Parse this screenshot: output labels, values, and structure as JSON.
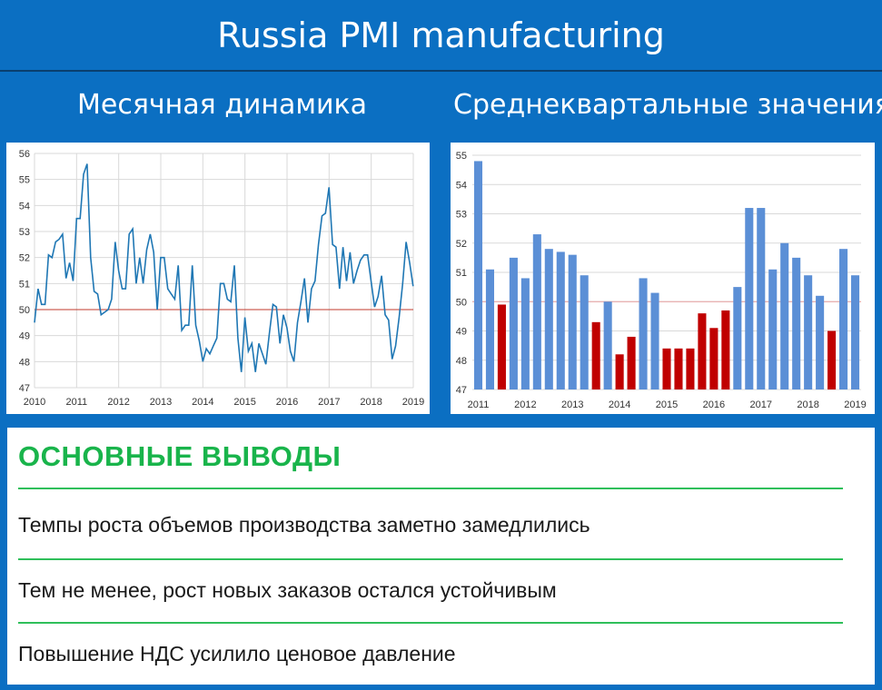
{
  "header": {
    "title": "Russia PMI manufacturing"
  },
  "left_chart_title": "Месячная динамика",
  "right_chart_title": "Среднеквартальные значения",
  "chart_data": [
    {
      "type": "line",
      "x_ticks": [
        "2010",
        "2011",
        "2012",
        "2013",
        "2014",
        "2015",
        "2016",
        "2017",
        "2018",
        "2019"
      ],
      "y_ticks": [
        47,
        48,
        49,
        50,
        51,
        52,
        53,
        54,
        55,
        56
      ],
      "ylim": [
        47,
        56
      ],
      "xlim": [
        2010.0,
        2019.0
      ],
      "reference_line": 50,
      "colors": {
        "line": "#1f77b4",
        "reference": "#c0392b",
        "grid": "#d9d9d9"
      },
      "series": [
        {
          "x_start": 2010.0,
          "step": 0.0833,
          "values": [
            49.5,
            50.8,
            50.2,
            50.2,
            52.1,
            52.0,
            52.6,
            52.7,
            52.9,
            51.2,
            51.8,
            51.1,
            53.5,
            53.5,
            55.2,
            55.6,
            52.0,
            50.7,
            50.6,
            49.8,
            49.9,
            50.0,
            50.4,
            52.6,
            51.5,
            50.8,
            50.8,
            52.9,
            53.1,
            51.0,
            52.0,
            51.0,
            52.3,
            52.9,
            52.2,
            50.0,
            52.0,
            52.0,
            50.8,
            50.6,
            50.4,
            51.7,
            49.2,
            49.4,
            49.4,
            51.7,
            49.4,
            48.8,
            48.0,
            48.5,
            48.3,
            48.6,
            48.9,
            51.0,
            51.0,
            50.4,
            50.3,
            51.7,
            48.9,
            47.6,
            49.7,
            48.4,
            48.7,
            47.6,
            48.7,
            48.3,
            47.9,
            49.1,
            50.2,
            50.1,
            48.7,
            49.8,
            49.3,
            48.4,
            48.0,
            49.5,
            50.3,
            51.2,
            49.5,
            50.8,
            51.1,
            52.5,
            53.6,
            53.7,
            54.7,
            52.5,
            52.4,
            50.8,
            52.4,
            51.1,
            52.2,
            51.0,
            51.5,
            51.9,
            52.1,
            52.1,
            51.1,
            50.1,
            50.5,
            51.3,
            49.8,
            49.6,
            48.1,
            48.6,
            49.7,
            51.0,
            52.6,
            51.8,
            50.9
          ]
        }
      ]
    },
    {
      "type": "bar",
      "x_ticks": [
        "2011",
        "2012",
        "2013",
        "2014",
        "2015",
        "2016",
        "2017",
        "2018",
        "2019"
      ],
      "y_ticks": [
        47,
        48,
        49,
        50,
        51,
        52,
        53,
        54,
        55
      ],
      "ylim": [
        47,
        55
      ],
      "reference_line": 50,
      "colors": {
        "above": "#5b8fd6",
        "below": "#c00000",
        "reference": "#e8a0a0",
        "grid": "#d9d9d9"
      },
      "values": [
        54.8,
        51.1,
        49.9,
        51.5,
        50.8,
        52.3,
        51.8,
        51.7,
        51.6,
        50.9,
        49.3,
        50.0,
        48.2,
        48.8,
        50.8,
        50.3,
        48.4,
        48.4,
        48.4,
        49.6,
        49.1,
        49.7,
        50.5,
        53.2,
        53.2,
        51.1,
        52.0,
        51.5,
        50.9,
        50.2,
        49.0,
        51.8,
        50.9
      ]
    }
  ],
  "conclusions": {
    "title": "ОСНОВНЫЕ ВЫВОДЫ",
    "items": [
      "Темпы роста объемов производства заметно замедлились",
      "Тем не менее, рост новых заказов остался устойчивым",
      "Повышение НДС усилило ценовое давление"
    ]
  }
}
